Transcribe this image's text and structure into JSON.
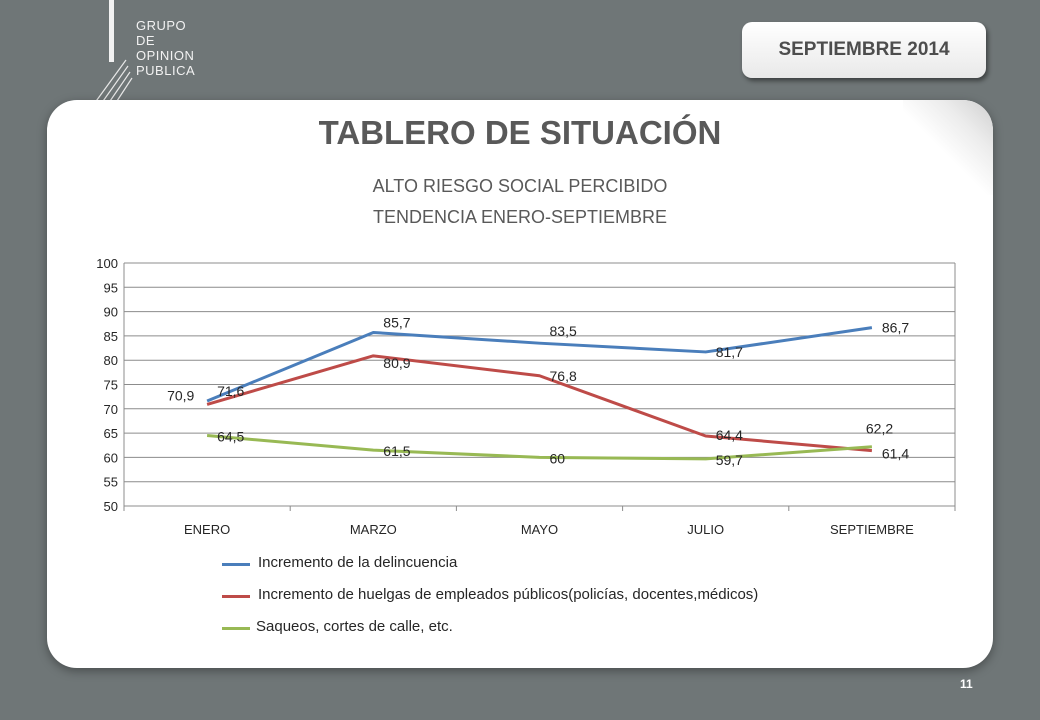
{
  "logo": {
    "lines": [
      "GRUPO",
      "DE",
      "OPINION",
      "PUBLICA"
    ]
  },
  "date_badge": "SEPTIEMBRE  2014",
  "title": "TABLERO DE SITUACIÓN",
  "subtitle_1": "ALTO  RIESGO SOCIAL PERCIBIDO",
  "subtitle_2": "TENDENCIA ENERO-SEPTIEMBRE",
  "page_number": "11",
  "chart_data": {
    "type": "line",
    "categories": [
      "ENERO",
      "MARZO",
      "MAYO",
      "JULIO",
      "SEPTIEMBRE"
    ],
    "ylim": [
      50,
      100
    ],
    "yticks": [
      50,
      55,
      60,
      65,
      70,
      75,
      80,
      85,
      90,
      95,
      100
    ],
    "grid": true,
    "legend_position": "bottom",
    "series": [
      {
        "name": "Incremento de la delincuencia",
        "color": "#4a7ebb",
        "values": [
          71.6,
          85.7,
          83.5,
          81.7,
          86.7
        ],
        "labels": [
          "71,6",
          "85,7",
          "83,5",
          "81,7",
          "86,7"
        ]
      },
      {
        "name": "Incremento de huelgas de empleados públicos(policías, docentes,médicos)",
        "color": "#be4b48",
        "values": [
          70.9,
          80.9,
          76.8,
          64.4,
          61.4
        ],
        "labels": [
          "70,9",
          "80,9",
          "76,8",
          "64,4",
          "61,4"
        ]
      },
      {
        "name": "Saqueos, cortes de calle, etc.",
        "color": "#98b954",
        "values": [
          64.5,
          61.5,
          60,
          59.7,
          62.2
        ],
        "labels": [
          "64,5",
          "61,5",
          "60",
          "59,7",
          "62,2"
        ]
      }
    ]
  }
}
